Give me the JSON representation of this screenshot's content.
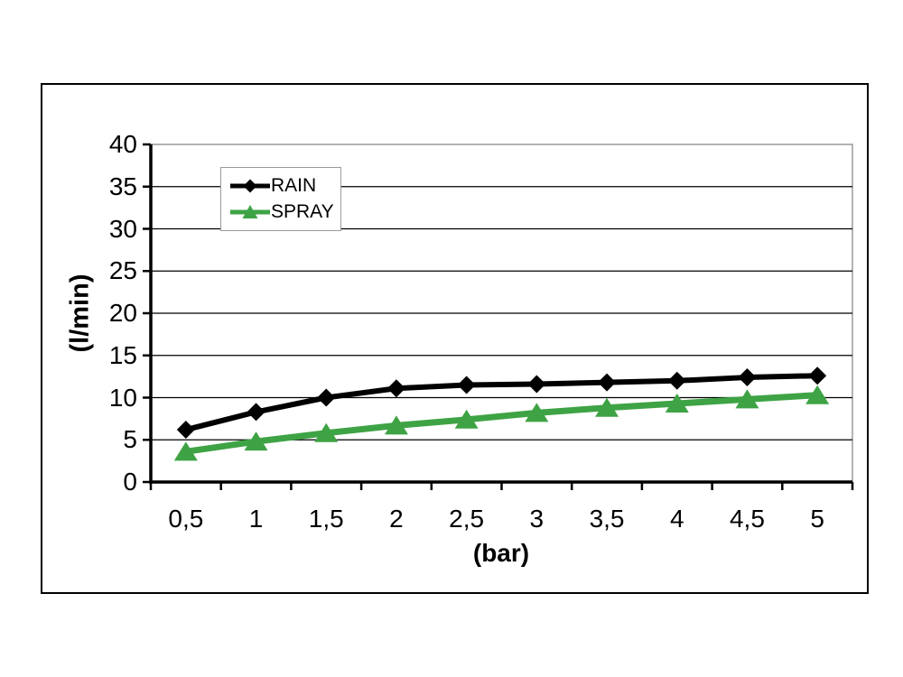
{
  "figure": {
    "background_color": "#ffffff",
    "border_color": "#000000"
  },
  "chart_data": {
    "type": "line",
    "title": "",
    "xlabel": "(bar)",
    "ylabel": "(l/min)",
    "categories": [
      "0,5",
      "1",
      "1,5",
      "2",
      "2,5",
      "3",
      "3,5",
      "4",
      "4,5",
      "5"
    ],
    "x_values": [
      0.5,
      1,
      1.5,
      2,
      2.5,
      3,
      3.5,
      4,
      4.5,
      5
    ],
    "y_tick_labels": [
      "0",
      "5",
      "10",
      "15",
      "20",
      "25",
      "30",
      "35",
      "40"
    ],
    "y_tick_values": [
      0,
      5,
      10,
      15,
      20,
      25,
      30,
      35,
      40
    ],
    "ylim": [
      0,
      40
    ],
    "grid": "horizontal-major",
    "gridline_color": "#000000",
    "plot_border_color": "#9a9a9a",
    "axis_color": "#000000",
    "legend_position": "inside-top-left",
    "series": [
      {
        "name": "RAIN",
        "color": "#000000",
        "marker": "diamond",
        "values": [
          6.2,
          8.3,
          10.0,
          11.1,
          11.5,
          11.6,
          11.8,
          12.0,
          12.4,
          12.6
        ]
      },
      {
        "name": "SPRAY",
        "color": "#3ea344",
        "marker": "triangle",
        "values": [
          3.6,
          4.8,
          5.8,
          6.7,
          7.4,
          8.2,
          8.8,
          9.3,
          9.8,
          10.3
        ]
      }
    ]
  }
}
